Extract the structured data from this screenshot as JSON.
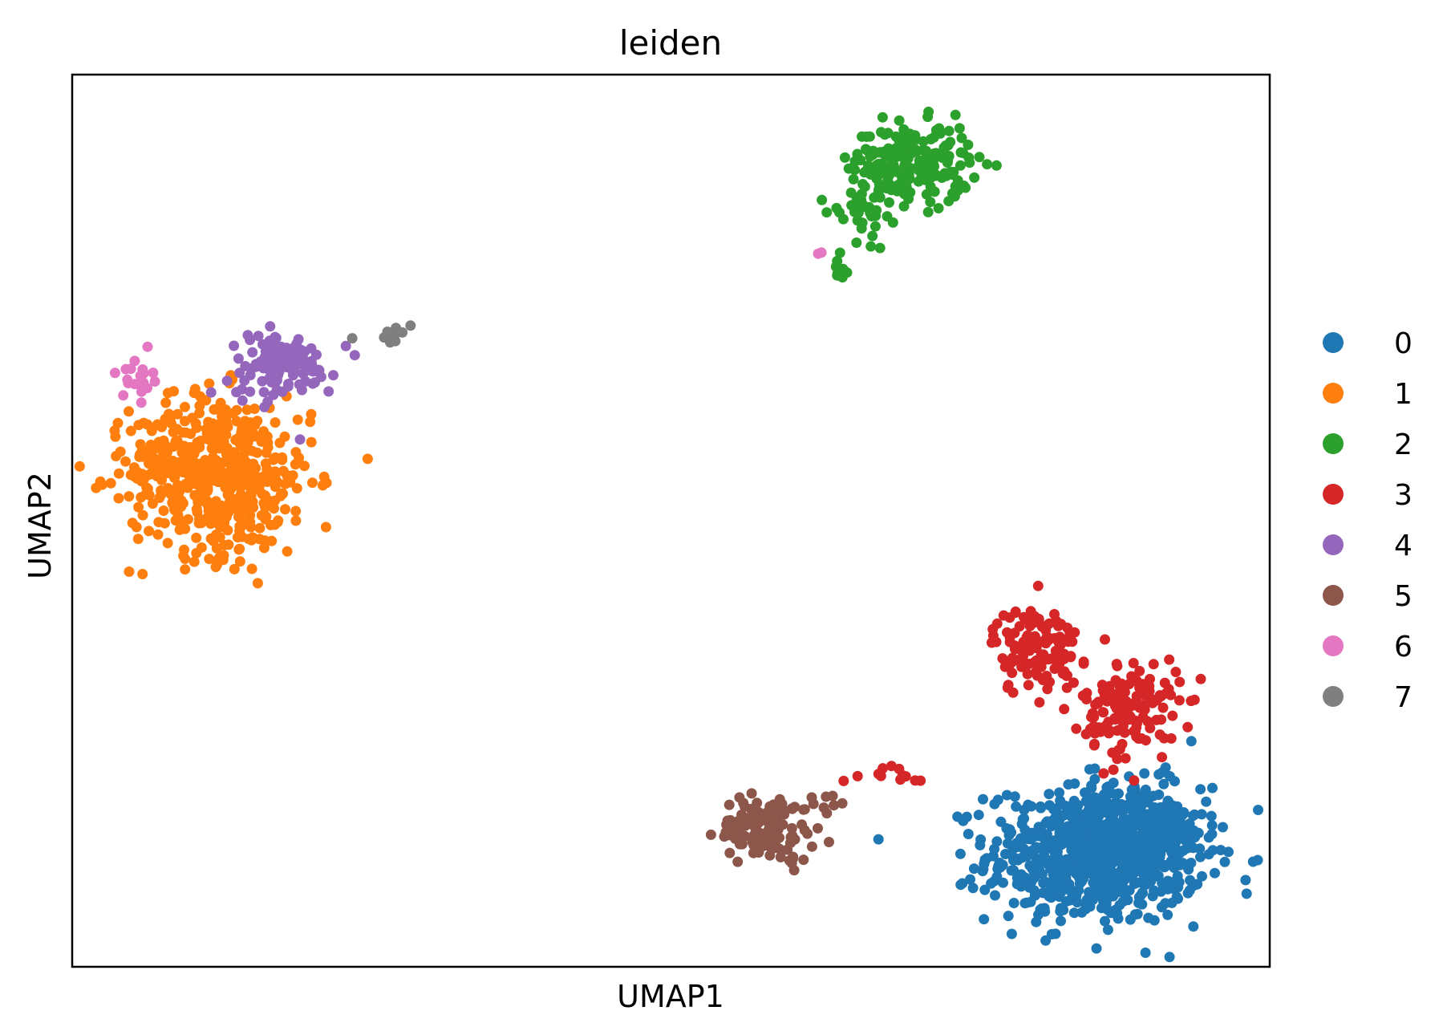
{
  "chart_data": {
    "type": "scatter",
    "title": "leiden",
    "xlabel": "UMAP1",
    "ylabel": "UMAP2",
    "xlim": [
      0,
      100
    ],
    "ylim": [
      0,
      100
    ],
    "grid": false,
    "ticks": false,
    "legend": {
      "placement": "right"
    },
    "series": [
      {
        "name": "0",
        "color": "#1f77b4",
        "clusters": [
          {
            "cx": 85.5,
            "cy": 12.5,
            "sx": 4.5,
            "sy": 3.8,
            "n": 700
          },
          {
            "cx": 88.5,
            "cy": 15.0,
            "sx": 3.0,
            "sy": 3.0,
            "n": 220
          }
        ]
      },
      {
        "name": "1",
        "color": "#ff7f0e",
        "clusters": [
          {
            "cx": 12.5,
            "cy": 55.0,
            "sx": 3.8,
            "sy": 4.5,
            "n": 480
          },
          {
            "cx": 8.5,
            "cy": 57.0,
            "sx": 2.0,
            "sy": 2.5,
            "n": 80
          }
        ]
      },
      {
        "name": "2",
        "color": "#2ca02c",
        "clusters": [
          {
            "cx": 70.0,
            "cy": 90.0,
            "sx": 2.5,
            "sy": 2.2,
            "n": 220
          },
          {
            "cx": 66.0,
            "cy": 85.0,
            "sx": 1.0,
            "sy": 1.8,
            "n": 35
          },
          {
            "cx": 64.0,
            "cy": 78.5,
            "sx": 0.4,
            "sy": 1.2,
            "n": 10
          }
        ]
      },
      {
        "name": "3",
        "color": "#d62728",
        "clusters": [
          {
            "cx": 80.5,
            "cy": 35.5,
            "sx": 1.8,
            "sy": 2.5,
            "n": 130
          },
          {
            "cx": 88.5,
            "cy": 29.0,
            "sx": 2.0,
            "sy": 2.8,
            "n": 140
          },
          {
            "cx": 68.5,
            "cy": 21.5,
            "sx": 2.2,
            "sy": 0.6,
            "n": 12
          }
        ]
      },
      {
        "name": "4",
        "color": "#9467bd",
        "clusters": [
          {
            "cx": 17.5,
            "cy": 67.5,
            "sx": 2.2,
            "sy": 1.8,
            "n": 120
          },
          {
            "cx": 18.9,
            "cy": 59.0,
            "sx": 0.1,
            "sy": 0.1,
            "n": 1
          }
        ]
      },
      {
        "name": "5",
        "color": "#8c564b",
        "clusters": [
          {
            "cx": 58.0,
            "cy": 15.5,
            "sx": 2.0,
            "sy": 1.8,
            "n": 130
          },
          {
            "cx": 62.5,
            "cy": 18.5,
            "sx": 1.2,
            "sy": 0.8,
            "n": 10
          }
        ]
      },
      {
        "name": "6",
        "color": "#e377c2",
        "clusters": [
          {
            "cx": 5.5,
            "cy": 66.0,
            "sx": 0.6,
            "sy": 1.2,
            "n": 20
          },
          {
            "cx": 62.5,
            "cy": 80.0,
            "sx": 0.1,
            "sy": 0.1,
            "n": 2
          }
        ]
      },
      {
        "name": "7",
        "color": "#7f7f7f",
        "clusters": [
          {
            "cx": 26.8,
            "cy": 71.0,
            "sx": 0.4,
            "sy": 0.4,
            "n": 10
          },
          {
            "cx": 23.5,
            "cy": 70.5,
            "sx": 0.1,
            "sy": 0.1,
            "n": 1
          }
        ]
      }
    ]
  }
}
